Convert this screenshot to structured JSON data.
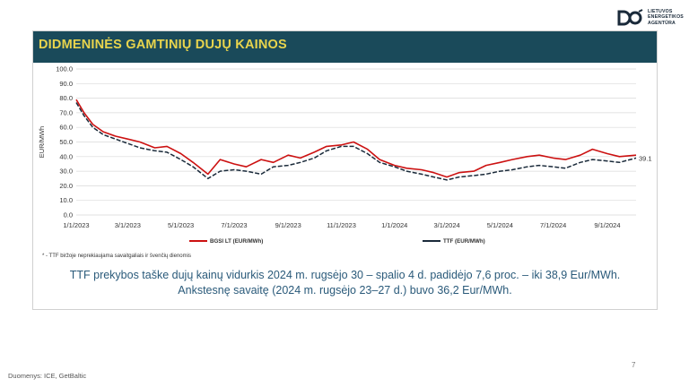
{
  "logo": {
    "lines": [
      "LIETUVOS",
      "ENERGETIKOS",
      "AGENTŪRA"
    ],
    "icon": "lea-logo-icon",
    "color": "#1a2a3a"
  },
  "slide": {
    "title": "DIDMENINĖS GAMTINIŲ DUJŲ KAINOS",
    "footnote": "* - TTF biržoje neprekiaujama savaitgaliais ir švenčių dienomis",
    "summary_line1": "TTF prekybos taške dujų kainų vidurkis 2024 m. rugsėjo 30 – spalio 4 d. padidėjo 7,6 proc. – iki 38,9 Eur/MWh.",
    "summary_line2": "Ankstesnę savaitę (2024 m. rugsėjo 23–27 d.) buvo 36,2 Eur/MWh.",
    "source": "Duomenys: ICE, GetBaltic",
    "page_number": "7"
  },
  "colors": {
    "title_bar": "#1a4a5a",
    "title_text": "#e8d44d",
    "summary_text": "#2a5a7a",
    "bgsi": "#cc1111",
    "ttf": "#1a2a3a"
  },
  "chart_data": {
    "type": "line",
    "ylabel": "EUR/MWh",
    "ylim": [
      0,
      100
    ],
    "yticks": [
      "0.0",
      "10.0",
      "20.0",
      "30.0",
      "40.0",
      "50.0",
      "60.0",
      "70.0",
      "80.0",
      "90.0",
      "100.0"
    ],
    "xticks": [
      "1/1/2023",
      "3/1/2023",
      "5/1/2023",
      "7/1/2023",
      "9/1/2023",
      "11/1/2023",
      "1/1/2024",
      "3/1/2024",
      "5/1/2024",
      "7/1/2024",
      "9/1/2024"
    ],
    "x_start": "2023-01-01",
    "x_end": "2024-10-04",
    "grid": true,
    "legend_position": "bottom",
    "end_label": "39.1",
    "series": [
      {
        "name": "BGSI LT (EUR/MWh)",
        "color": "#cc1111",
        "points": [
          [
            "2023-01-01",
            79
          ],
          [
            "2023-01-10",
            70
          ],
          [
            "2023-01-20",
            62
          ],
          [
            "2023-02-01",
            57
          ],
          [
            "2023-02-15",
            54
          ],
          [
            "2023-03-01",
            52
          ],
          [
            "2023-03-15",
            50
          ],
          [
            "2023-04-01",
            46
          ],
          [
            "2023-04-15",
            47
          ],
          [
            "2023-05-01",
            42
          ],
          [
            "2023-05-15",
            36
          ],
          [
            "2023-06-01",
            28
          ],
          [
            "2023-06-15",
            38
          ],
          [
            "2023-07-01",
            35
          ],
          [
            "2023-07-15",
            33
          ],
          [
            "2023-08-01",
            38
          ],
          [
            "2023-08-15",
            36
          ],
          [
            "2023-09-01",
            41
          ],
          [
            "2023-09-15",
            39
          ],
          [
            "2023-10-01",
            43
          ],
          [
            "2023-10-15",
            47
          ],
          [
            "2023-11-01",
            48
          ],
          [
            "2023-11-15",
            50
          ],
          [
            "2023-12-01",
            45
          ],
          [
            "2023-12-15",
            38
          ],
          [
            "2024-01-01",
            34
          ],
          [
            "2024-01-15",
            32
          ],
          [
            "2024-02-01",
            31
          ],
          [
            "2024-02-15",
            29
          ],
          [
            "2024-03-01",
            26
          ],
          [
            "2024-03-15",
            29
          ],
          [
            "2024-04-01",
            30
          ],
          [
            "2024-04-15",
            34
          ],
          [
            "2024-05-01",
            36
          ],
          [
            "2024-05-15",
            38
          ],
          [
            "2024-06-01",
            40
          ],
          [
            "2024-06-15",
            41
          ],
          [
            "2024-07-01",
            39
          ],
          [
            "2024-07-15",
            38
          ],
          [
            "2024-08-01",
            41
          ],
          [
            "2024-08-15",
            45
          ],
          [
            "2024-09-01",
            42
          ],
          [
            "2024-09-15",
            40
          ],
          [
            "2024-10-04",
            41
          ]
        ]
      },
      {
        "name": "TTF (EUR/MWh)",
        "color": "#1a2a3a",
        "points": [
          [
            "2023-01-01",
            77
          ],
          [
            "2023-01-10",
            68
          ],
          [
            "2023-01-20",
            60
          ],
          [
            "2023-02-01",
            55
          ],
          [
            "2023-02-15",
            52
          ],
          [
            "2023-03-01",
            49
          ],
          [
            "2023-03-15",
            46
          ],
          [
            "2023-04-01",
            44
          ],
          [
            "2023-04-15",
            43
          ],
          [
            "2023-05-01",
            38
          ],
          [
            "2023-05-15",
            33
          ],
          [
            "2023-06-01",
            25
          ],
          [
            "2023-06-15",
            30
          ],
          [
            "2023-07-01",
            31
          ],
          [
            "2023-07-15",
            30
          ],
          [
            "2023-08-01",
            28
          ],
          [
            "2023-08-15",
            33
          ],
          [
            "2023-09-01",
            34
          ],
          [
            "2023-09-15",
            36
          ],
          [
            "2023-10-01",
            39
          ],
          [
            "2023-10-15",
            44
          ],
          [
            "2023-11-01",
            47
          ],
          [
            "2023-11-15",
            47
          ],
          [
            "2023-12-01",
            42
          ],
          [
            "2023-12-15",
            36
          ],
          [
            "2024-01-01",
            33
          ],
          [
            "2024-01-15",
            30
          ],
          [
            "2024-02-01",
            28
          ],
          [
            "2024-02-15",
            26
          ],
          [
            "2024-03-01",
            24
          ],
          [
            "2024-03-15",
            26
          ],
          [
            "2024-04-01",
            27
          ],
          [
            "2024-04-15",
            28
          ],
          [
            "2024-05-01",
            30
          ],
          [
            "2024-05-15",
            31
          ],
          [
            "2024-06-01",
            33
          ],
          [
            "2024-06-15",
            34
          ],
          [
            "2024-07-01",
            33
          ],
          [
            "2024-07-15",
            32
          ],
          [
            "2024-08-01",
            36
          ],
          [
            "2024-08-15",
            38
          ],
          [
            "2024-09-01",
            37
          ],
          [
            "2024-09-15",
            36
          ],
          [
            "2024-10-04",
            39
          ]
        ]
      }
    ]
  }
}
